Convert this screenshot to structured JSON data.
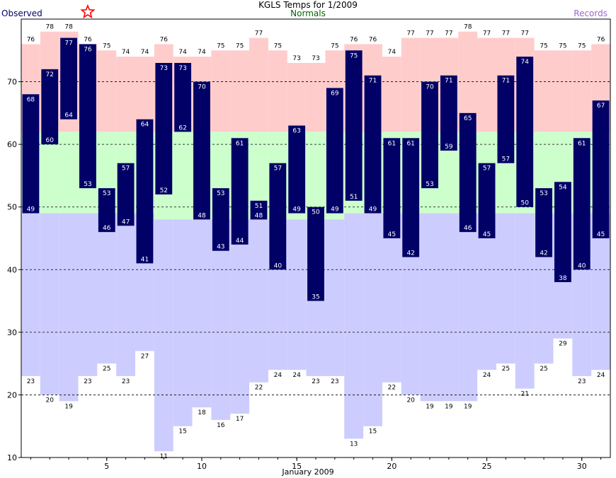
{
  "title": "KGLS Temps for 1/2009",
  "legend": {
    "observed": "Observed",
    "normals": "Normals",
    "records": "Records"
  },
  "colors": {
    "observed_bar": "#000066",
    "observed_label": "#000066",
    "normals_label": "#006600",
    "records_label": "#9966cc",
    "record_high_fill": "#ffcccc",
    "normal_fill": "#ccffcc",
    "record_low_fill": "#ccccff",
    "star": "#ff0000"
  },
  "chart_data": {
    "type": "bar",
    "title": "KGLS Temps for 1/2009",
    "xlabel": "January 2009",
    "ylabel": "",
    "days": [
      1,
      2,
      3,
      4,
      5,
      6,
      7,
      8,
      9,
      10,
      11,
      12,
      13,
      14,
      15,
      16,
      17,
      18,
      19,
      20,
      21,
      22,
      23,
      24,
      25,
      26,
      27,
      28,
      29,
      30,
      31
    ],
    "x_ticks": [
      5,
      10,
      15,
      20,
      25,
      30
    ],
    "y_ticks": [
      10,
      20,
      30,
      40,
      50,
      60,
      70
    ],
    "ylim": [
      10,
      80
    ],
    "grid": "horizontal dashed",
    "observed_high": [
      68,
      72,
      77,
      76,
      53,
      57,
      64,
      73,
      73,
      70,
      53,
      61,
      51,
      57,
      63,
      50,
      69,
      75,
      71,
      61,
      61,
      70,
      71,
      65,
      57,
      71,
      74,
      53,
      54,
      61,
      67
    ],
    "observed_low": [
      49,
      60,
      64,
      53,
      46,
      47,
      41,
      52,
      62,
      48,
      43,
      44,
      48,
      40,
      49,
      35,
      49,
      51,
      49,
      45,
      42,
      53,
      59,
      46,
      45,
      57,
      50,
      42,
      38,
      40,
      45
    ],
    "normal_high": [
      62,
      62,
      62,
      62,
      62,
      62,
      62,
      62,
      62,
      62,
      62,
      62,
      62,
      62,
      62,
      62,
      62,
      62,
      62,
      62,
      62,
      62,
      62,
      62,
      62,
      62,
      62,
      62,
      62,
      62,
      62
    ],
    "normal_low": [
      49,
      49,
      49,
      49,
      49,
      49,
      49,
      48,
      48,
      48,
      48,
      48,
      48,
      48,
      48,
      48,
      48,
      49,
      49,
      49,
      49,
      49,
      49,
      49,
      49,
      49,
      49,
      49,
      49,
      49,
      49
    ],
    "record_high": [
      76,
      78,
      78,
      76,
      75,
      74,
      74,
      76,
      74,
      74,
      75,
      75,
      77,
      75,
      73,
      73,
      75,
      76,
      76,
      74,
      77,
      77,
      77,
      78,
      77,
      77,
      77,
      75,
      75,
      75,
      76
    ],
    "record_low": [
      23,
      20,
      19,
      23,
      25,
      23,
      27,
      11,
      15,
      18,
      16,
      17,
      22,
      24,
      24,
      23,
      23,
      13,
      15,
      22,
      20,
      19,
      19,
      19,
      24,
      25,
      21,
      25,
      29,
      23,
      24
    ],
    "record_marker_day": 4
  }
}
